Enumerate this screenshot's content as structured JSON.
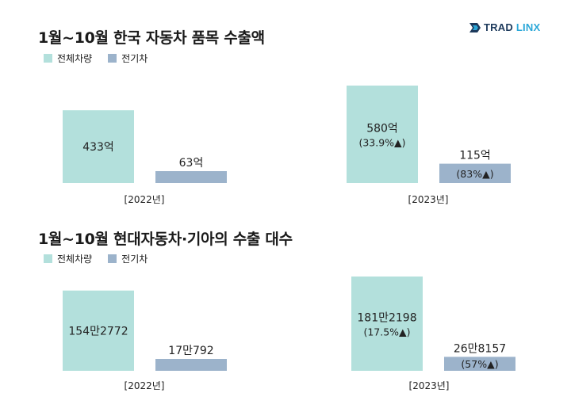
{
  "brand": {
    "part1": "TRAD",
    "part2": "LINX"
  },
  "colors": {
    "total": "#b3e0dc",
    "ev": "#9cb3cb"
  },
  "chart_data": [
    {
      "type": "bar",
      "title": "1월~10월 한국 자동차 품목 수출액",
      "legend": [
        "전체차량",
        "전기차"
      ],
      "categories": [
        "[2022년]",
        "[2023년]"
      ],
      "series": [
        {
          "name": "전체차량",
          "values": [
            433,
            580
          ],
          "labels": [
            "433억",
            "580억"
          ],
          "sublabels": [
            "",
            "(33.9%▲)"
          ]
        },
        {
          "name": "전기차",
          "values": [
            63,
            115
          ],
          "labels": [
            "63억",
            "115억"
          ],
          "sublabels": [
            "",
            "(83%▲)"
          ]
        }
      ],
      "ylim": [
        0,
        580
      ]
    },
    {
      "type": "bar",
      "title": "1월~10월 현대자동차·기아의 수출 대수",
      "legend": [
        "전체차량",
        "전기차"
      ],
      "categories": [
        "[2022년]",
        "[2023년]"
      ],
      "series": [
        {
          "name": "전체차량",
          "values": [
            1542772,
            1812198
          ],
          "labels": [
            "154만2772",
            "181만2198"
          ],
          "sublabels": [
            "",
            "(17.5%▲)"
          ]
        },
        {
          "name": "전기차",
          "values": [
            170792,
            268157
          ],
          "labels": [
            "17만792",
            "26만8157"
          ],
          "sublabels": [
            "",
            "(57%▲)"
          ]
        }
      ],
      "ylim": [
        0,
        1812198
      ]
    }
  ]
}
